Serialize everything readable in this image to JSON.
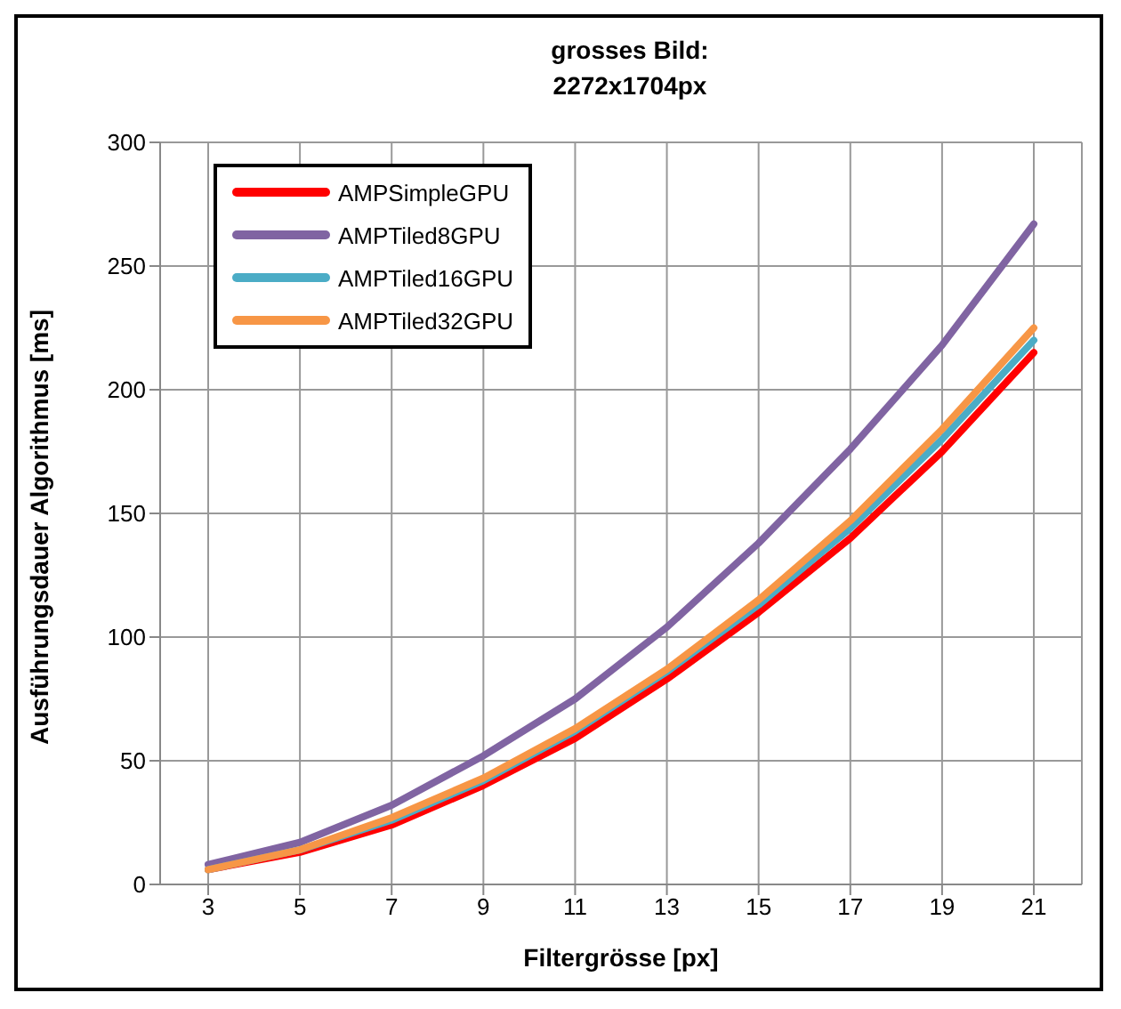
{
  "chart_data": {
    "type": "line",
    "title": "grosses Bild:\n2272x1704px",
    "xlabel": "Filtergrösse [px]",
    "ylabel": "Ausführungsdauer Algorithmus [ms]",
    "categories": [
      "3",
      "5",
      "7",
      "9",
      "11",
      "13",
      "15",
      "17",
      "19",
      "21"
    ],
    "series": [
      {
        "name": "AMPSimpleGPU",
        "color": "#ff0000",
        "values": [
          6,
          13,
          24,
          40,
          59,
          83,
          110,
          140,
          175,
          215
        ]
      },
      {
        "name": "AMPTiled8GPU",
        "color": "#8064a2",
        "values": [
          8,
          17,
          32,
          52,
          75,
          104,
          138,
          176,
          218,
          267
        ]
      },
      {
        "name": "AMPTiled16GPU",
        "color": "#4bacc6",
        "values": [
          6,
          14,
          26,
          42,
          62,
          86,
          113,
          144,
          180,
          220
        ]
      },
      {
        "name": "AMPTiled32GPU",
        "color": "#f79646",
        "values": [
          6,
          14,
          27,
          43,
          63,
          87,
          115,
          147,
          184,
          225
        ]
      }
    ],
    "ylim": [
      0,
      300
    ],
    "yticks": [
      0,
      50,
      100,
      150,
      200,
      250,
      300
    ],
    "grid": true,
    "legend": "top left",
    "marker": "none",
    "line_style": "solid"
  }
}
